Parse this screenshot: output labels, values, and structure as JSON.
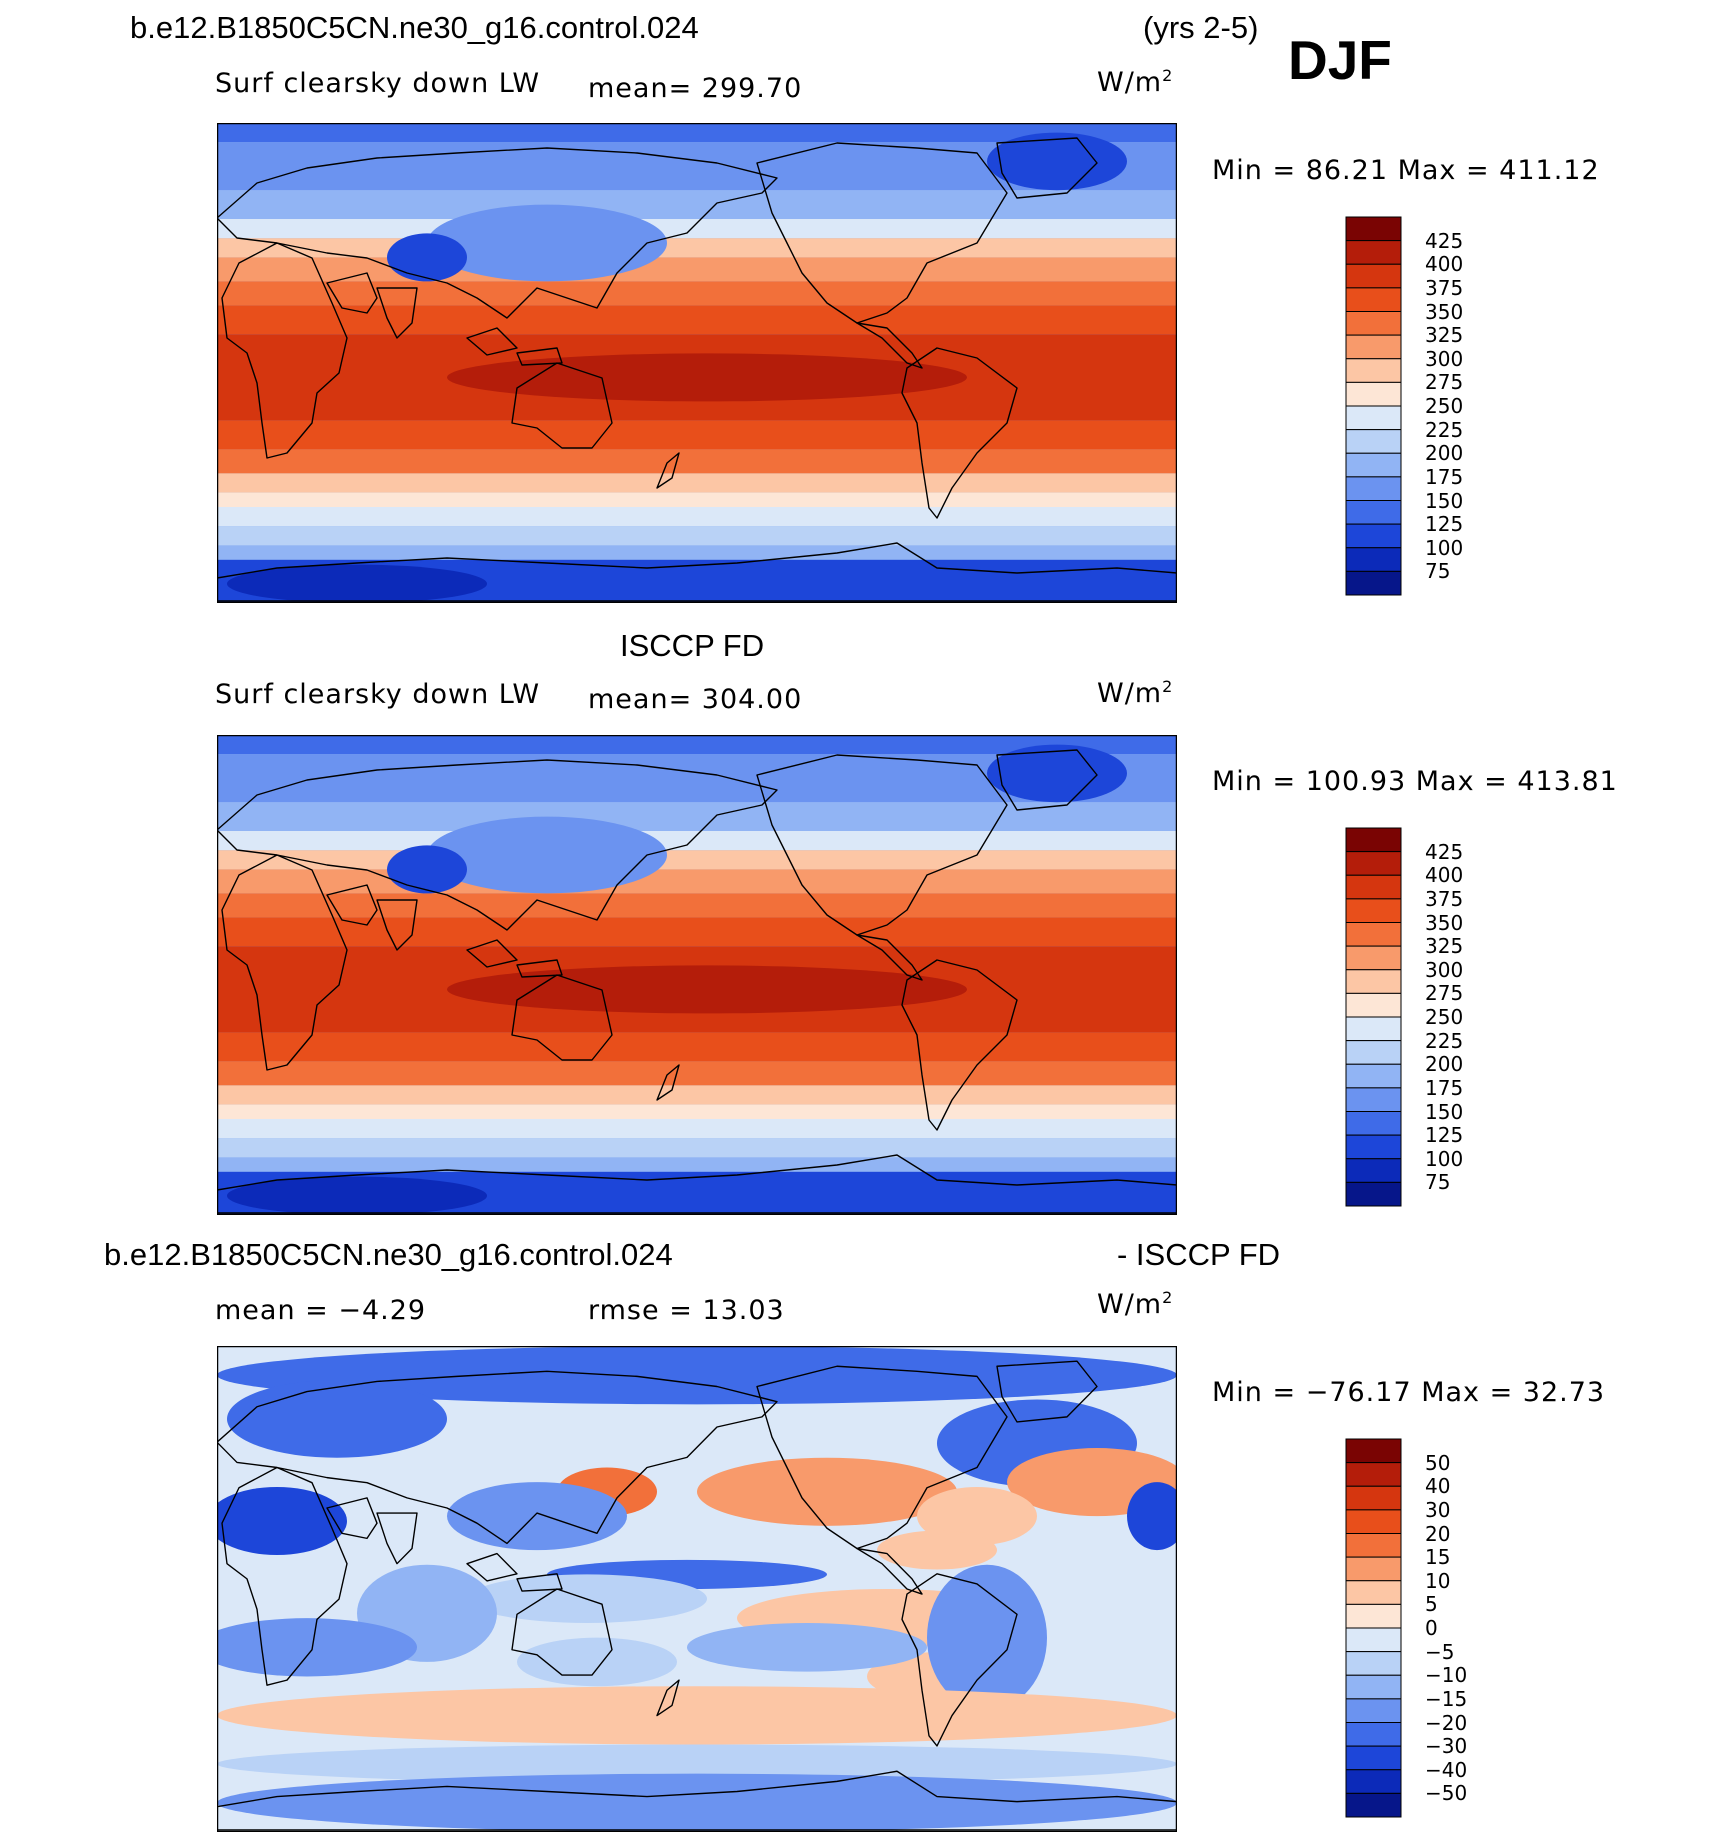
{
  "header": {
    "case_name": "b.e12.B1850C5CN.ne30_g16.control.024",
    "years": "(yrs 2-5)",
    "season": "DJF"
  },
  "chart_data": [
    {
      "type": "heatmap",
      "title": "b.e12.B1850C5CN.ne30_g16.control.024",
      "variable": "Surf clearsky down LW",
      "stat_text": "mean=  299.70",
      "mean": 299.7,
      "units": "W/m",
      "units_exp": "2",
      "minmax_text": "Min =   86.21  Max  =  411.12",
      "min": 86.21,
      "max": 411.12,
      "colorbar_levels": [
        "425",
        "400",
        "375",
        "350",
        "325",
        "300",
        "275",
        "250",
        "225",
        "200",
        "175",
        "150",
        "125",
        "100",
        "75"
      ],
      "colors": [
        "#7a0403",
        "#b41d0a",
        "#d5360f",
        "#e84f1b",
        "#f2703a",
        "#f89a6b",
        "#fcc6a5",
        "#fde6d6",
        "#dbe8f8",
        "#b9d2f6",
        "#91b4f4",
        "#6b93f0",
        "#3f6be8",
        "#1d46d9",
        "#0c2ab9",
        "#06168a"
      ]
    },
    {
      "type": "heatmap",
      "title": "ISCCP FD",
      "variable": "Surf clearsky down LW",
      "stat_text": "mean=  304.00",
      "mean": 304.0,
      "units": "W/m",
      "units_exp": "2",
      "minmax_text": "Min  =  100.93  Max  =  413.81",
      "min": 100.93,
      "max": 413.81,
      "colorbar_levels": [
        "425",
        "400",
        "375",
        "350",
        "325",
        "300",
        "275",
        "250",
        "225",
        "200",
        "175",
        "150",
        "125",
        "100",
        "75"
      ],
      "colors": [
        "#7a0403",
        "#b41d0a",
        "#d5360f",
        "#e84f1b",
        "#f2703a",
        "#f89a6b",
        "#fcc6a5",
        "#fde6d6",
        "#dbe8f8",
        "#b9d2f6",
        "#91b4f4",
        "#6b93f0",
        "#3f6be8",
        "#1d46d9",
        "#0c2ab9",
        "#06168a"
      ]
    },
    {
      "type": "heatmap",
      "title_left": "b.e12.B1850C5CN.ne30_g16.control.024",
      "title_right": "- ISCCP FD",
      "mean_text": "mean  =   −4.29",
      "mean": -4.29,
      "rmse_text": "rmse  =    13.03",
      "rmse": 13.03,
      "units": "W/m",
      "units_exp": "2",
      "minmax_text": "Min  =  −76.17  Max  =    32.73",
      "min": -76.17,
      "max": 32.73,
      "colorbar_levels": [
        "50",
        "40",
        "30",
        "20",
        "15",
        "10",
        "5",
        "0",
        "−5",
        "−10",
        "−15",
        "−20",
        "−30",
        "−40",
        "−50"
      ],
      "colors": [
        "#7a0403",
        "#b41d0a",
        "#d5360f",
        "#e84f1b",
        "#f2703a",
        "#f89a6b",
        "#fcc6a5",
        "#fde6d6",
        "#dbe8f8",
        "#b9d2f6",
        "#91b4f4",
        "#6b93f0",
        "#3f6be8",
        "#1d46d9",
        "#0c2ab9",
        "#06168a"
      ]
    }
  ]
}
